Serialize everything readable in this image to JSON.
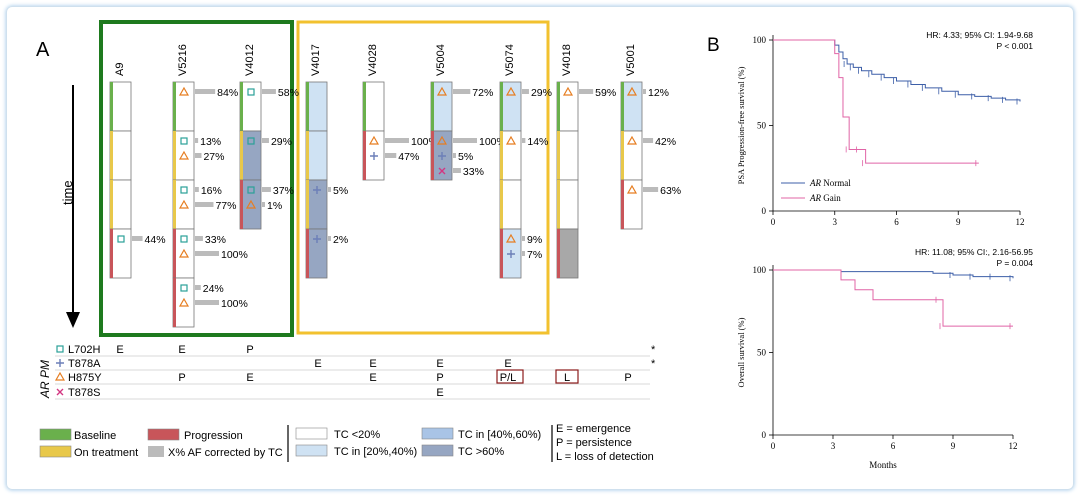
{
  "panel_a": {
    "label": "A",
    "time_label": "time",
    "samples": [
      {
        "id": "A9",
        "blocks": [
          "baseline",
          "treatment",
          "treatment",
          "progression"
        ],
        "tc": [
          "w",
          "w",
          "w",
          "w"
        ],
        "muts": [
          [],
          [],
          [],
          [
            {
              "m": "sq",
              "af": "44%"
            }
          ]
        ]
      },
      {
        "id": "V5216",
        "blocks": [
          "baseline",
          "treatment",
          "treatment",
          "progression",
          "progression"
        ],
        "tc": [
          "w",
          "w",
          "w",
          "w",
          "w"
        ],
        "muts": [
          [
            {
              "m": "tri",
              "af": "84%"
            }
          ],
          [
            {
              "m": "sq",
              "af": "13%"
            },
            {
              "m": "tri",
              "af": "27%"
            }
          ],
          [
            {
              "m": "sq",
              "af": "16%"
            },
            {
              "m": "tri",
              "af": "77%"
            }
          ],
          [
            {
              "m": "sq",
              "af": "33%"
            },
            {
              "m": "tri",
              "af": "100%"
            }
          ],
          [
            {
              "m": "sq",
              "af": "24%"
            },
            {
              "m": "tri",
              "af": "100%"
            }
          ]
        ]
      },
      {
        "id": "V4012",
        "blocks": [
          "baseline",
          "treatment",
          "progression"
        ],
        "tc": [
          "w",
          "d",
          "d"
        ],
        "muts": [
          [
            {
              "m": "sq",
              "af": "58%"
            }
          ],
          [
            {
              "m": "sq",
              "af": "29%"
            }
          ],
          [
            {
              "m": "sq",
              "af": "37%"
            },
            {
              "m": "tri",
              "af": "1%"
            }
          ]
        ]
      },
      {
        "id": "V4017",
        "blocks": [
          "baseline",
          "treatment",
          "treatment",
          "progression"
        ],
        "tc": [
          "l",
          "l",
          "d",
          "d"
        ],
        "muts": [
          [],
          [],
          [
            {
              "m": "plus",
              "af": "5%"
            }
          ],
          [
            {
              "m": "plus",
              "af": "2%"
            }
          ]
        ]
      },
      {
        "id": "V4028",
        "blocks": [
          "baseline",
          "progression"
        ],
        "tc": [
          "w",
          "w"
        ],
        "muts": [
          [],
          [
            {
              "m": "tri",
              "af": "100%"
            },
            {
              "m": "plus",
              "af": "47%"
            }
          ]
        ]
      },
      {
        "id": "V5004",
        "blocks": [
          "baseline",
          "progression"
        ],
        "tc": [
          "l",
          "d"
        ],
        "muts": [
          [
            {
              "m": "tri",
              "af": "72%"
            }
          ],
          [
            {
              "m": "tri",
              "af": "100%"
            },
            {
              "m": "plus",
              "af": "5%"
            },
            {
              "m": "x",
              "af": "33%"
            }
          ]
        ]
      },
      {
        "id": "V5074",
        "blocks": [
          "baseline",
          "treatment",
          "treatment",
          "progression"
        ],
        "tc": [
          "l",
          "w",
          "w",
          "l"
        ],
        "muts": [
          [
            {
              "m": "tri",
              "af": "29%"
            }
          ],
          [
            {
              "m": "tri",
              "af": "14%"
            }
          ],
          [],
          [
            {
              "m": "tri",
              "af": "9%"
            },
            {
              "m": "plus",
              "af": "7%"
            }
          ]
        ]
      },
      {
        "id": "V4018",
        "blocks": [
          "baseline",
          "treatment",
          "treatment",
          "progression"
        ],
        "tc": [
          "w",
          "w",
          "w",
          "g"
        ],
        "muts": [
          [
            {
              "m": "tri",
              "af": "59%"
            }
          ],
          [],
          [],
          []
        ]
      },
      {
        "id": "V5001",
        "blocks": [
          "baseline",
          "treatment",
          "progression"
        ],
        "tc": [
          "l",
          "w",
          "w"
        ],
        "muts": [
          [
            {
              "m": "tri",
              "af": "12%"
            }
          ],
          [
            {
              "m": "tri",
              "af": "42%"
            }
          ],
          [
            {
              "m": "tri",
              "af": "63%"
            }
          ]
        ]
      }
    ],
    "pm_axis_label": "AR PM",
    "pm_table": [
      {
        "mutation": "L702H",
        "marker": "sq",
        "cells": [
          "E",
          "E",
          "P",
          "",
          "",
          "",
          "",
          "",
          ""
        ],
        "note": "*"
      },
      {
        "mutation": "T878A",
        "marker": "plus",
        "cells": [
          "",
          "",
          "",
          "E",
          "E",
          "E",
          "E",
          "",
          ""
        ],
        "note": "*"
      },
      {
        "mutation": "H875Y",
        "marker": "tri",
        "cells": [
          "",
          "P",
          "E",
          "",
          "E",
          "P",
          "P/L",
          "L",
          "P"
        ],
        "note": ""
      },
      {
        "mutation": "T878S",
        "marker": "x",
        "cells": [
          "",
          "",
          "",
          "",
          "",
          "E",
          "",
          "",
          ""
        ],
        "note": ""
      }
    ],
    "boxed_cells": [
      "P/L",
      "L"
    ],
    "legend": {
      "baseline": "Baseline",
      "on_treatment": "On treatment",
      "progression": "Progression",
      "af": "X% AF corrected by TC",
      "tc1": "TC <20%",
      "tc2": "TC in [20%,40%)",
      "tc3": "TC in [40%,60%)",
      "tc4": "TC >60%",
      "e": "E = emergence",
      "p": "P = persistence",
      "l": "L = loss of detection"
    },
    "colors": {
      "baseline": "#6ab04c",
      "treatment": "#e8c84a",
      "progression": "#c8555a",
      "tc_white": "#ffffff",
      "tc_light": "#cfe2f3",
      "tc_mid": "#a9c4e6",
      "tc_dark": "#96a6c2",
      "tc_gray": "#a8a8a8",
      "green_box": "#1e7a1e",
      "yellow_box": "#f2c12e",
      "sq": "#2aa198",
      "tri": "#e67e22",
      "plus": "#6c7fb8",
      "x": "#d33682",
      "bar": "#bbbbbb"
    }
  },
  "panel_b": {
    "label": "B",
    "chart_data": [
      {
        "type": "line",
        "ylabel": "PSA Progression-free survival (%)",
        "xticks": [
          0,
          3,
          6,
          9,
          12
        ],
        "yticks": [
          0,
          50,
          100
        ],
        "xlim": [
          0,
          12
        ],
        "ylim": [
          0,
          100
        ],
        "stats": [
          "HR: 4.33; 95% CI: 1.94-9.68",
          "P < 0.001"
        ],
        "series": [
          {
            "name": "AR Normal",
            "color": "#3d5fa8",
            "x": [
              0,
              2.9,
              3.0,
              3.2,
              3.4,
              3.6,
              3.9,
              4.3,
              4.8,
              5.4,
              6.0,
              6.7,
              7.4,
              8.2,
              9.0,
              9.8,
              10.6,
              11.3,
              12.0
            ],
            "y": [
              100,
              100,
              97,
              93,
              89,
              86,
              84,
              82,
              80,
              78,
              76,
              74,
              72,
              70,
              68,
              67,
              66,
              65,
              64
            ]
          },
          {
            "name": "AR Gain",
            "color": "#e064a6",
            "x": [
              0,
              2.9,
              3.0,
              3.2,
              3.4,
              3.7,
              4.2,
              4.5,
              10.0
            ],
            "y": [
              100,
              100,
              92,
              78,
              55,
              36,
              36,
              28,
              28
            ]
          }
        ]
      },
      {
        "type": "line",
        "ylabel": "Overall survival (%)",
        "xlabel": "Months",
        "xticks": [
          0,
          3,
          6,
          9,
          12
        ],
        "yticks": [
          0,
          50,
          100
        ],
        "xlim": [
          0,
          12
        ],
        "ylim": [
          0,
          100
        ],
        "stats": [
          "HR: 11.08; 95% CI:, 2.16-56.95",
          "P = 0.004"
        ],
        "series": [
          {
            "name": "AR Normal",
            "color": "#3d5fa8",
            "x": [
              0,
              3.0,
              3.4,
              6.0,
              8.0,
              9.0,
              10.0,
              11.0,
              12.0
            ],
            "y": [
              100,
              100,
              99,
              99,
              98,
              97,
              96,
              96,
              95
            ]
          },
          {
            "name": "AR Gain",
            "color": "#e064a6",
            "x": [
              0,
              2.9,
              3.4,
              4.1,
              5.0,
              8.3,
              8.5,
              12.0
            ],
            "y": [
              100,
              100,
              94,
              88,
              82,
              82,
              66,
              66
            ]
          }
        ]
      }
    ]
  }
}
